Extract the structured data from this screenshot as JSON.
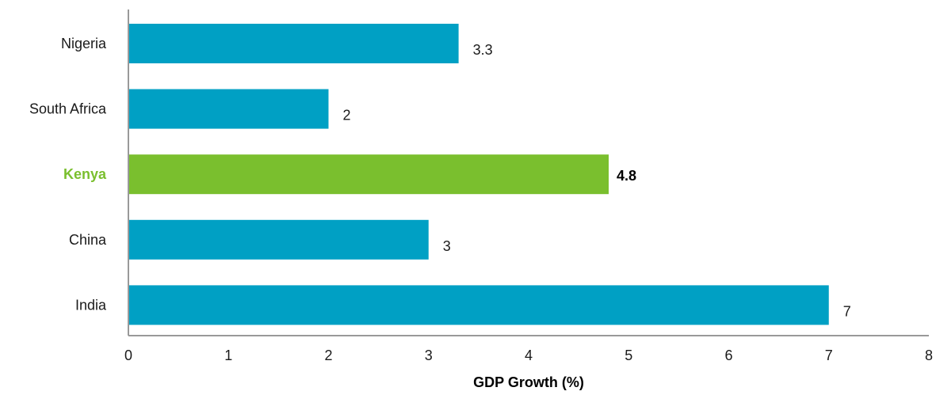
{
  "chart_data": {
    "type": "bar",
    "orientation": "horizontal",
    "categories": [
      "Nigeria",
      "South Africa",
      "Kenya",
      "China",
      "India"
    ],
    "values": [
      3.3,
      2,
      4.8,
      3,
      7
    ],
    "value_labels": [
      "3.3",
      "2",
      "4.8",
      "3",
      "7"
    ],
    "highlight": "Kenya",
    "xlabel": "GDP Growth (%)",
    "ylabel": "",
    "title": "",
    "xlim": [
      0,
      8
    ],
    "xticks": [
      "0",
      "1",
      "2",
      "3",
      "4",
      "5",
      "6",
      "7",
      "8"
    ],
    "grid": false,
    "legend": "none",
    "colors": {
      "bar": "#00a0c4",
      "highlight": "#7abf2e",
      "axis": "#999999"
    }
  }
}
